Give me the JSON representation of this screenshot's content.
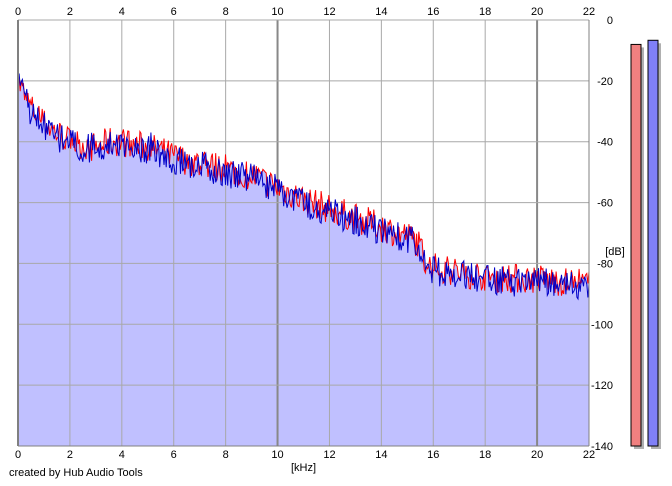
{
  "credit": "created by Hub Audio Tools",
  "colors": {
    "background": "#ffffff",
    "grid": "#a8a8a8",
    "grid_major": "#888888",
    "fill": "#c0c0ff",
    "left_channel": "#ff0000",
    "right_channel": "#0000c8",
    "meter_left": "#f08080",
    "meter_right": "#8080f8"
  },
  "chart_data": {
    "type": "line",
    "title": "",
    "xlabel": "[kHz]",
    "ylabel": "[dB]",
    "xlim": [
      0,
      22
    ],
    "ylim": [
      -140,
      0
    ],
    "x_ticks": [
      0,
      2,
      4,
      6,
      8,
      10,
      12,
      14,
      16,
      18,
      20,
      22
    ],
    "y_ticks": [
      0,
      -20,
      -40,
      -60,
      -80,
      -100,
      -120,
      -140
    ],
    "grid": true,
    "fill_below": true,
    "series": [
      {
        "color": "#ff0000",
        "envelope": {
          "x": [
            0,
            0.3,
            0.6,
            1,
            1.5,
            2,
            2.5,
            3,
            3.5,
            4,
            4.5,
            5,
            5.5,
            6,
            7,
            8,
            9,
            10,
            10.5,
            11,
            12,
            13,
            14,
            15,
            15.4,
            15.8,
            16.5,
            17,
            18,
            19,
            20,
            21,
            22
          ],
          "y": [
            -20,
            -26,
            -30,
            -34,
            -37,
            -40,
            -41,
            -42,
            -40,
            -40,
            -41,
            -42,
            -43,
            -45,
            -47,
            -49,
            -51,
            -55,
            -57,
            -59,
            -62,
            -65,
            -68,
            -71,
            -73,
            -81,
            -82,
            -83,
            -84,
            -85,
            -85,
            -86,
            -87
          ],
          "noise_amplitude": 5,
          "seed": 7
        }
      },
      {
        "color": "#0000c8",
        "envelope": {
          "x": [
            0,
            0.3,
            0.6,
            1,
            1.5,
            2,
            2.5,
            3,
            3.5,
            4,
            4.5,
            5,
            5.5,
            6,
            7,
            8,
            9,
            10,
            10.5,
            11,
            12,
            13,
            14,
            15,
            15.4,
            15.8,
            16.5,
            17,
            18,
            19,
            20,
            21,
            22
          ],
          "y": [
            -21,
            -27,
            -31,
            -35,
            -38,
            -41,
            -42,
            -42,
            -41,
            -41,
            -42,
            -43,
            -44,
            -46,
            -48,
            -50,
            -52,
            -56,
            -58,
            -60,
            -63,
            -66,
            -69,
            -72,
            -74,
            -82,
            -83,
            -84,
            -85,
            -86,
            -86,
            -87,
            -88
          ],
          "noise_amplitude": 5,
          "seed": 13
        }
      }
    ],
    "meters": [
      {
        "channel": "left",
        "level_fraction": 0.97
      },
      {
        "channel": "right",
        "level_fraction": 0.98
      }
    ]
  }
}
